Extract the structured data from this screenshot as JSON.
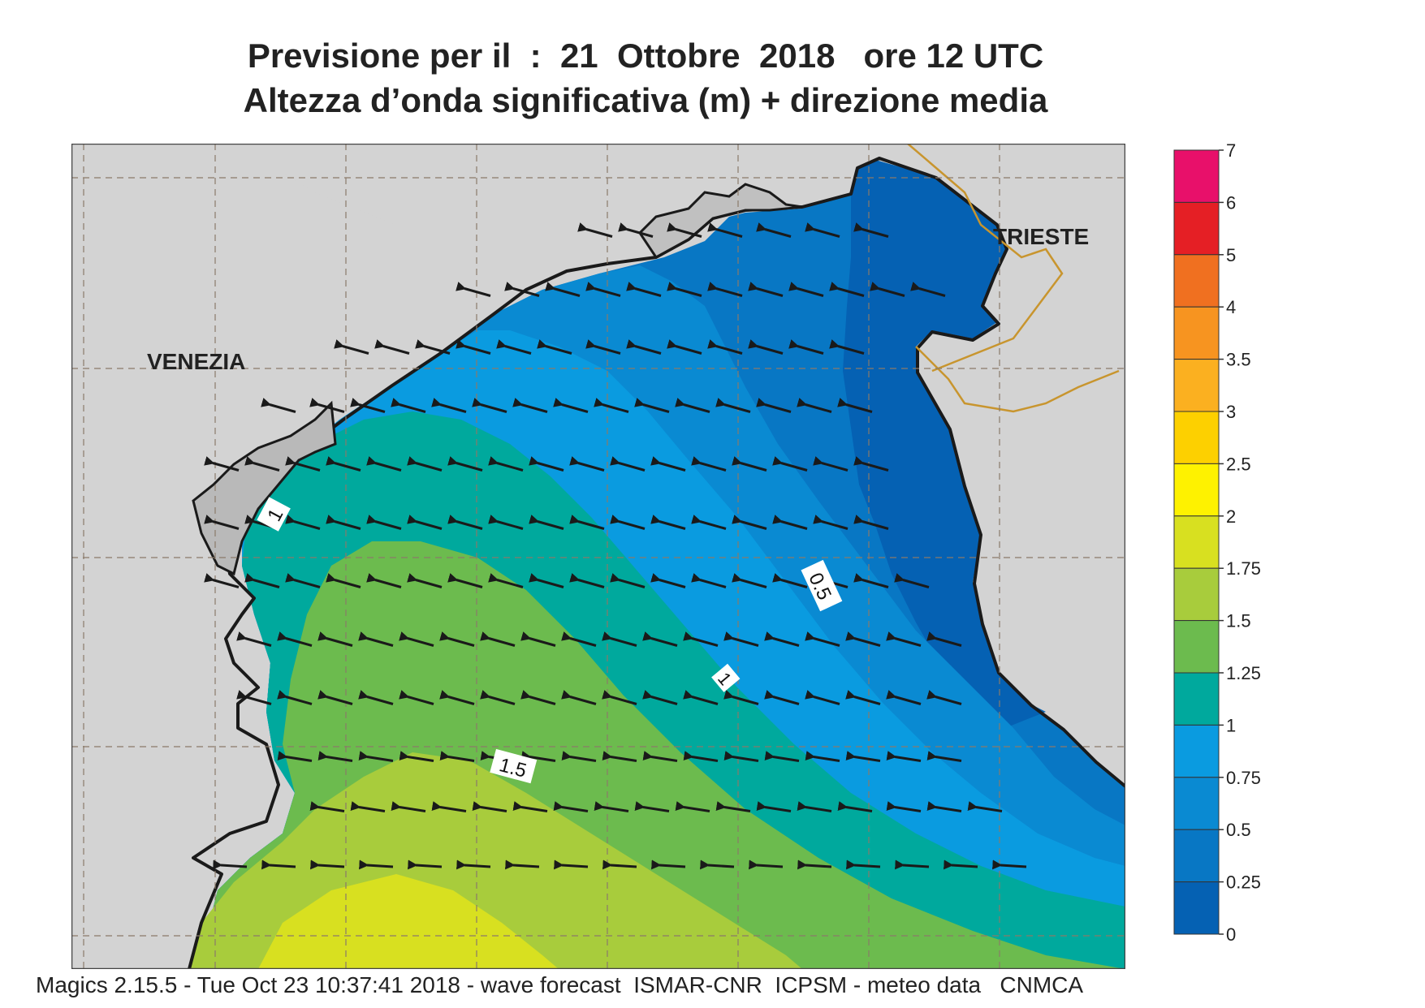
{
  "title": {
    "line1": "Previsione per il  :  21  Ottobre  2018   ore 12 UTC",
    "line2": "Altezza d’onda significativa (m) + direzione media"
  },
  "labels": {
    "venezia": "VENEZIA",
    "trieste": "TRIESTE"
  },
  "contour_labels": [
    "1",
    "0.5",
    "1",
    "1.5"
  ],
  "colorbar": {
    "ticks": [
      "7",
      "6",
      "5",
      "4",
      "3.5",
      "3",
      "2.5",
      "2",
      "1.75",
      "1.5",
      "1.25",
      "1",
      "0.75",
      "0.5",
      "0.25",
      "0"
    ],
    "colors": [
      "#e8106a",
      "#e51f25",
      "#f07020",
      "#f79420",
      "#fbb020",
      "#fdd000",
      "#fef200",
      "#d8e020",
      "#a8cc3c",
      "#6cbb4e",
      "#00a99d",
      "#0a9be0",
      "#0a8ad2",
      "#0877c4",
      "#0561b3"
    ]
  },
  "colors": {
    "land": "#d3d3d3",
    "coast": "#1a1a1a",
    "border": "#c8952e",
    "grid": "#8a7a6a"
  },
  "footer": "Magics 2.15.5 - Tue Oct 23 10:37:41 2018 - wave forecast  ISMAR-CNR  ICPSM - meteo data   CNMCA"
}
